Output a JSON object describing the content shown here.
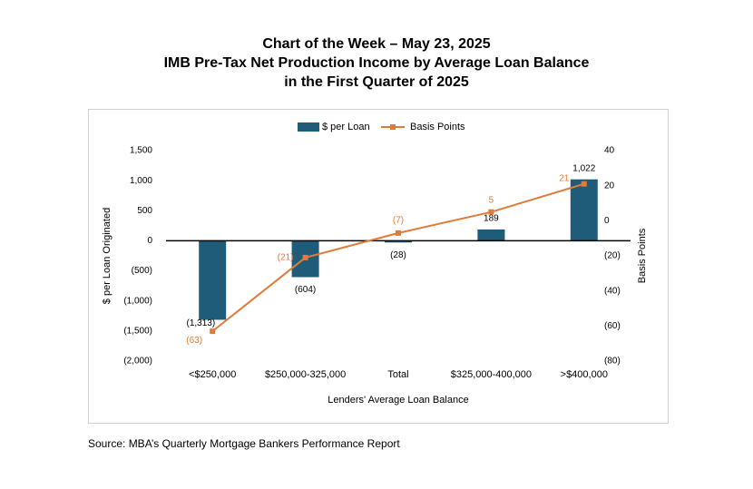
{
  "header": {
    "title_1": "Chart of the Week – May 23, 2025",
    "title_2": "IMB Pre-Tax Net Production Income by Average Loan Balance",
    "title_3": "in the First Quarter of 2025"
  },
  "footer": {
    "source": "Source: MBA’s Quarterly Mortgage Bankers Performance Report"
  },
  "chart_data": {
    "type": "bar",
    "categories": [
      "<$250,000",
      "$250,000-325,000",
      "Total",
      "$325,000-400,000",
      ">$400,000"
    ],
    "series": [
      {
        "name": "$ per Loan",
        "type": "bar",
        "axis": "left",
        "color": "#1f5c7a",
        "values": [
          -1313,
          -604,
          -28,
          189,
          1022
        ],
        "labels": [
          "(1,313)",
          "(604)",
          "(28)",
          "189",
          "1,022"
        ]
      },
      {
        "name": "Basis Points",
        "type": "line",
        "axis": "right",
        "color": "#e07b39",
        "values": [
          -63,
          -21,
          -7,
          5,
          21
        ],
        "labels": [
          "(63)",
          "(21)",
          "(7)",
          "5",
          "21"
        ]
      }
    ],
    "xlabel": "Lenders' Average Loan Balance",
    "ylabel": "$ per Loan Originated",
    "y2label": "Basis Points",
    "ylim": [
      -2000,
      1500
    ],
    "y2lim": [
      -80,
      40
    ],
    "yticks": [
      1500,
      1000,
      500,
      0,
      -500,
      -1000,
      -1500,
      -2000
    ],
    "yticklabels": [
      "1,500",
      "1,000",
      "500",
      "0",
      "(500)",
      "(1,000)",
      "(1,500)",
      "(2,000)"
    ],
    "y2ticks": [
      40,
      20,
      0,
      -20,
      -40,
      -60,
      -80
    ],
    "y2ticklabels": [
      "40",
      "20",
      "0",
      "(20)",
      "(40)",
      "(60)",
      "(80)"
    ],
    "legend": "top-center",
    "grid": false
  }
}
